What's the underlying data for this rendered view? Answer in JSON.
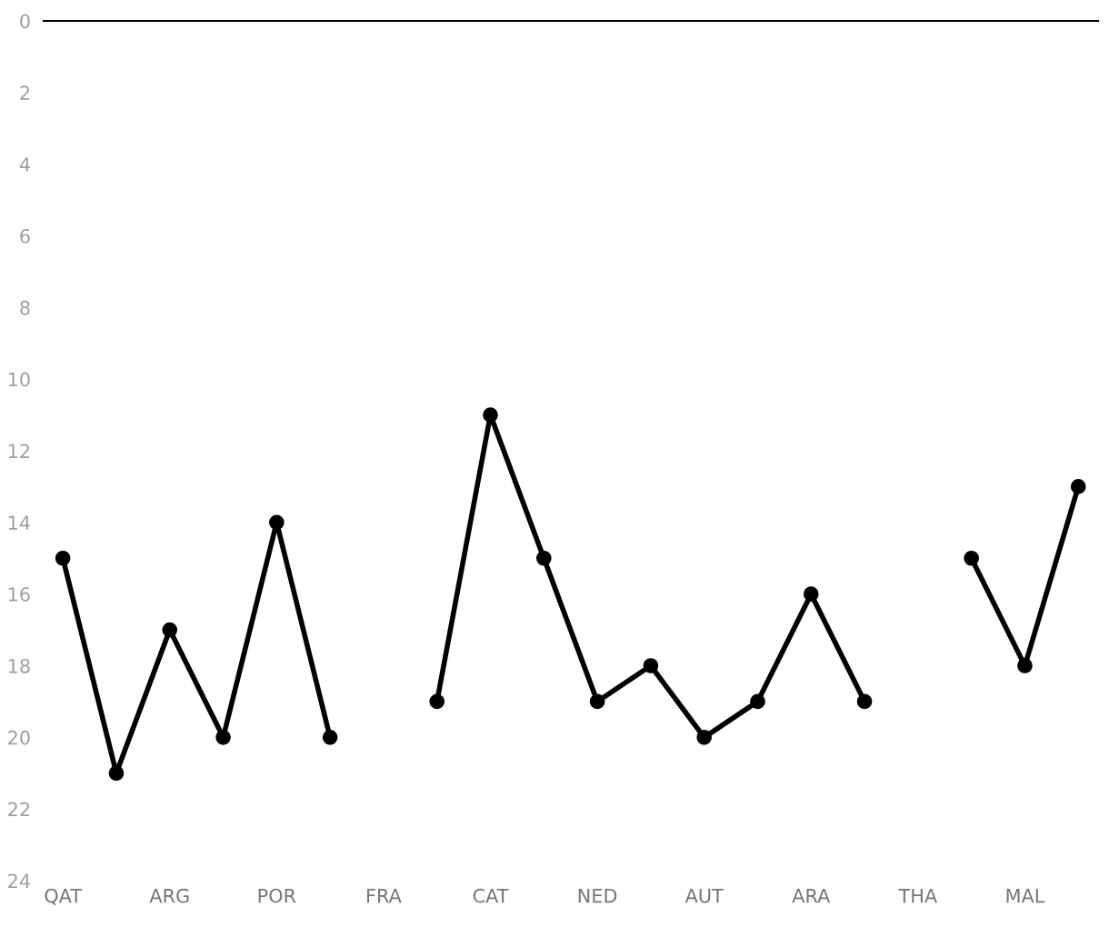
{
  "chart_data": {
    "type": "line",
    "categories": [
      "QAT",
      null,
      "ARG",
      null,
      "POR",
      null,
      "FRA",
      null,
      "CAT",
      null,
      "NED",
      null,
      "AUT",
      null,
      "ARA",
      null,
      "THA",
      null,
      "MAL",
      null
    ],
    "series": [
      {
        "color": "#000000",
        "values": [
          15,
          21,
          17,
          20,
          14,
          20,
          null,
          19,
          11,
          15,
          19,
          18,
          20,
          19,
          16,
          19,
          null,
          15,
          18,
          13
        ]
      }
    ],
    "ylim": [
      24,
      0
    ],
    "yticks": [
      0,
      2,
      4,
      6,
      8,
      10,
      12,
      14,
      16,
      18,
      20,
      22,
      24
    ],
    "grid": false,
    "marker": "circle",
    "line_style": "solid"
  }
}
